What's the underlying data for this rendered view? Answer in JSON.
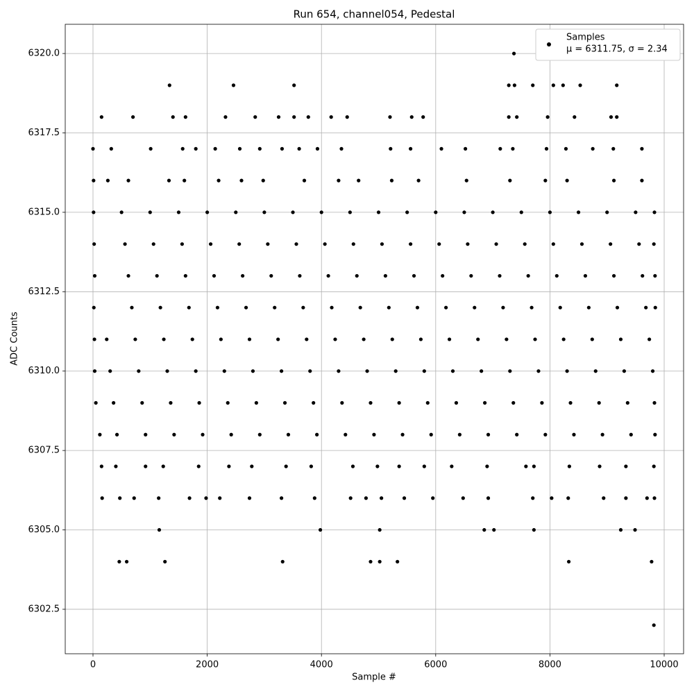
{
  "chart_data": {
    "type": "scatter",
    "title": "Run 654, channel054, Pedestal",
    "x_label": "Sample #",
    "y_label": "ADC Counts",
    "xlim": [
      -486,
      10340
    ],
    "ylim": [
      6301.1,
      6320.92
    ],
    "xticks": [
      0,
      2000,
      4000,
      6000,
      8000,
      10000
    ],
    "yticks": [
      6302.5,
      {
        "value": 6305,
        "label": "6305.0"
      },
      6307.5,
      {
        "value": 6310,
        "label": "6310.0"
      },
      6312.5,
      {
        "value": 6315,
        "label": "6315.0"
      },
      6317.5,
      {
        "value": 6320,
        "label": "6320.0"
      }
    ],
    "grid": true,
    "legend": "upper right",
    "legend_note": "μ = 6311.75, σ = 2.34",
    "series": [
      {
        "name": "Samples",
        "color": "#000000",
        "x": [
          10,
          500,
          1000,
          1500,
          2000,
          2500,
          3000,
          3500,
          4000,
          4500,
          5000,
          5500,
          6000,
          6500,
          7000,
          7500,
          8000,
          8500,
          9000,
          9500,
          9830,
          20,
          560,
          1060,
          1560,
          2060,
          2560,
          3060,
          3560,
          4060,
          4560,
          5060,
          5560,
          6060,
          6560,
          7060,
          7560,
          8060,
          8560,
          9060,
          9560,
          9820,
          30,
          620,
          1120,
          1620,
          2120,
          2620,
          3120,
          3620,
          4120,
          4620,
          5120,
          5620,
          6120,
          6620,
          7120,
          7620,
          8120,
          8620,
          9120,
          9620,
          9840,
          15,
          680,
          1180,
          1680,
          2180,
          2680,
          3180,
          3680,
          4180,
          4680,
          5180,
          5680,
          6180,
          6680,
          7180,
          7680,
          8180,
          8680,
          9180,
          9680,
          9845,
          25,
          240,
          740,
          1240,
          1740,
          2240,
          2740,
          3240,
          3740,
          4240,
          4740,
          5240,
          5740,
          6240,
          6740,
          7240,
          7740,
          8240,
          8740,
          9240,
          9740,
          30,
          300,
          800,
          1300,
          1800,
          2300,
          2800,
          3300,
          3800,
          4300,
          4800,
          5300,
          5800,
          6300,
          6800,
          7300,
          7800,
          8300,
          8800,
          9300,
          9800,
          50,
          360,
          860,
          1360,
          1860,
          2360,
          2860,
          3360,
          3860,
          4360,
          4860,
          5360,
          5860,
          6360,
          6860,
          7360,
          7860,
          8360,
          8860,
          9360,
          9830,
          120,
          420,
          920,
          1420,
          1920,
          2420,
          2920,
          3420,
          3920,
          4420,
          4920,
          5420,
          5920,
          6420,
          6920,
          7420,
          7920,
          8420,
          8920,
          9420,
          9840,
          10,
          260,
          620,
          1330,
          1600,
          2200,
          2600,
          2980,
          3700,
          4300,
          4650,
          5230,
          5700,
          6540,
          7300,
          7920,
          8300,
          9120,
          9610,
          150,
          400,
          920,
          1230,
          1850,
          2380,
          2780,
          3380,
          3820,
          4550,
          4980,
          5360,
          5800,
          6280,
          6900,
          7580,
          7720,
          8340,
          8870,
          9330,
          9820,
          160,
          470,
          720,
          1150,
          1690,
          1980,
          2220,
          2740,
          3300,
          3880,
          4510,
          4780,
          5050,
          5450,
          5950,
          6480,
          6920,
          7700,
          8030,
          8320,
          8940,
          9330,
          9700,
          9830,
          0,
          320,
          1010,
          1570,
          1800,
          2140,
          2570,
          2920,
          3310,
          3610,
          3930,
          4350,
          5210,
          5560,
          6100,
          6520,
          7130,
          7350,
          7940,
          8280,
          8750,
          9110,
          9610,
          150,
          700,
          1400,
          1620,
          2320,
          2840,
          3250,
          3520,
          3770,
          4170,
          4450,
          5200,
          5580,
          5780,
          7280,
          7420,
          7960,
          8430,
          9070,
          9170,
          1340,
          2460,
          3520,
          7280,
          7380,
          7700,
          8060,
          8230,
          8530,
          9170,
          7370,
          1160,
          3980,
          5020,
          6850,
          7020,
          7720,
          9240,
          9490,
          460,
          590,
          1260,
          3320,
          4860,
          5020,
          5330,
          8330,
          9780,
          9820
        ],
        "values": [
          6315,
          6315,
          6315,
          6315,
          6315,
          6315,
          6315,
          6315,
          6315,
          6315,
          6315,
          6315,
          6315,
          6315,
          6315,
          6315,
          6315,
          6315,
          6315,
          6315,
          6315,
          6314,
          6314,
          6314,
          6314,
          6314,
          6314,
          6314,
          6314,
          6314,
          6314,
          6314,
          6314,
          6314,
          6314,
          6314,
          6314,
          6314,
          6314,
          6314,
          6314,
          6314,
          6313,
          6313,
          6313,
          6313,
          6313,
          6313,
          6313,
          6313,
          6313,
          6313,
          6313,
          6313,
          6313,
          6313,
          6313,
          6313,
          6313,
          6313,
          6313,
          6313,
          6313,
          6312,
          6312,
          6312,
          6312,
          6312,
          6312,
          6312,
          6312,
          6312,
          6312,
          6312,
          6312,
          6312,
          6312,
          6312,
          6312,
          6312,
          6312,
          6312,
          6312,
          6312,
          6311,
          6311,
          6311,
          6311,
          6311,
          6311,
          6311,
          6311,
          6311,
          6311,
          6311,
          6311,
          6311,
          6311,
          6311,
          6311,
          6311,
          6311,
          6311,
          6311,
          6311,
          6310,
          6310,
          6310,
          6310,
          6310,
          6310,
          6310,
          6310,
          6310,
          6310,
          6310,
          6310,
          6310,
          6310,
          6310,
          6310,
          6310,
          6310,
          6310,
          6310,
          6310,
          6309,
          6309,
          6309,
          6309,
          6309,
          6309,
          6309,
          6309,
          6309,
          6309,
          6309,
          6309,
          6309,
          6309,
          6309,
          6309,
          6309,
          6309,
          6309,
          6309,
          6309,
          6308,
          6308,
          6308,
          6308,
          6308,
          6308,
          6308,
          6308,
          6308,
          6308,
          6308,
          6308,
          6308,
          6308,
          6308,
          6308,
          6308,
          6308,
          6308,
          6308,
          6308,
          6316,
          6316,
          6316,
          6316,
          6316,
          6316,
          6316,
          6316,
          6316,
          6316,
          6316,
          6316,
          6316,
          6316,
          6316,
          6316,
          6316,
          6316,
          6316,
          6307,
          6307,
          6307,
          6307,
          6307,
          6307,
          6307,
          6307,
          6307,
          6307,
          6307,
          6307,
          6307,
          6307,
          6307,
          6307,
          6307,
          6307,
          6307,
          6307,
          6307,
          6306,
          6306,
          6306,
          6306,
          6306,
          6306,
          6306,
          6306,
          6306,
          6306,
          6306,
          6306,
          6306,
          6306,
          6306,
          6306,
          6306,
          6306,
          6306,
          6306,
          6306,
          6306,
          6306,
          6306,
          6317,
          6317,
          6317,
          6317,
          6317,
          6317,
          6317,
          6317,
          6317,
          6317,
          6317,
          6317,
          6317,
          6317,
          6317,
          6317,
          6317,
          6317,
          6317,
          6317,
          6317,
          6317,
          6317,
          6318,
          6318,
          6318,
          6318,
          6318,
          6318,
          6318,
          6318,
          6318,
          6318,
          6318,
          6318,
          6318,
          6318,
          6318,
          6318,
          6318,
          6318,
          6318,
          6318,
          6319,
          6319,
          6319,
          6319,
          6319,
          6319,
          6319,
          6319,
          6319,
          6319,
          6320,
          6305,
          6305,
          6305,
          6305,
          6305,
          6305,
          6305,
          6305,
          6304,
          6304,
          6304,
          6304,
          6304,
          6304,
          6304,
          6304,
          6304,
          6302
        ]
      }
    ]
  }
}
